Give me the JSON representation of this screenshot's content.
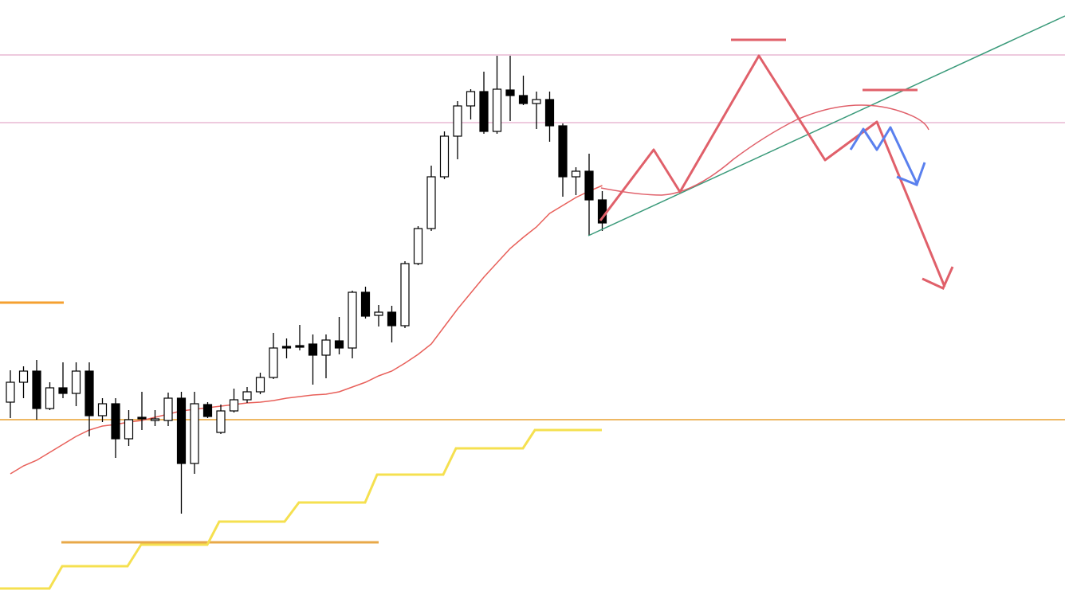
{
  "chart_data": {
    "type": "candlestick",
    "open": [
      261,
      286,
      300,
      253,
      279,
      272,
      300,
      244,
      259,
      215,
      242,
      238,
      238,
      266,
      184,
      258,
      223,
      250,
      264,
      274,
      292,
      331,
      332,
      334,
      320,
      338,
      329,
      399,
      370,
      374,
      357,
      435,
      479,
      544,
      595,
      633,
      651,
      601,
      653,
      646,
      636,
      641,
      608,
      544,
      551,
      515
    ],
    "high": [
      301,
      306,
      314,
      286,
      311,
      311,
      311,
      266,
      266,
      251,
      274,
      251,
      273,
      274,
      274,
      261,
      258,
      278,
      280,
      298,
      348,
      341,
      358,
      346,
      346,
      368,
      401,
      406,
      383,
      382,
      438,
      482,
      558,
      601,
      639,
      654,
      676,
      696,
      696,
      671,
      651,
      651,
      611,
      556,
      573,
      526
    ],
    "low": [
      241,
      266,
      239,
      251,
      266,
      256,
      218,
      236,
      191,
      206,
      226,
      231,
      231,
      121,
      171,
      241,
      221,
      248,
      260,
      271,
      290,
      316,
      326,
      283,
      291,
      321,
      316,
      366,
      356,
      336,
      354,
      433,
      476,
      541,
      566,
      616,
      598,
      598,
      614,
      634,
      604,
      588,
      519,
      521,
      470,
      476
    ],
    "close": [
      286,
      300,
      253,
      279,
      272,
      300,
      244,
      259,
      215,
      239,
      240,
      240,
      266,
      184,
      259,
      243,
      250,
      264,
      274,
      292,
      329,
      329,
      330,
      320,
      339,
      329,
      399,
      369,
      374,
      357,
      435,
      479,
      544,
      595,
      633,
      651,
      601,
      654,
      646,
      636,
      641,
      608,
      544,
      551,
      515,
      486
    ],
    "up_color": "#ffffff",
    "down_color": "#000000",
    "ma": {
      "color": "#e8605a",
      "values": [
        171,
        181,
        188,
        198,
        208,
        218,
        226,
        231,
        233,
        236,
        238,
        242,
        246,
        250,
        252,
        254,
        256,
        258,
        260,
        261,
        263,
        266,
        268,
        270,
        271,
        274,
        280,
        286,
        294,
        300,
        310,
        321,
        334,
        356,
        378,
        398,
        418,
        436,
        454,
        468,
        481,
        498,
        508,
        518,
        526,
        533
      ]
    },
    "ylim": [
      0,
      766
    ]
  }
}
